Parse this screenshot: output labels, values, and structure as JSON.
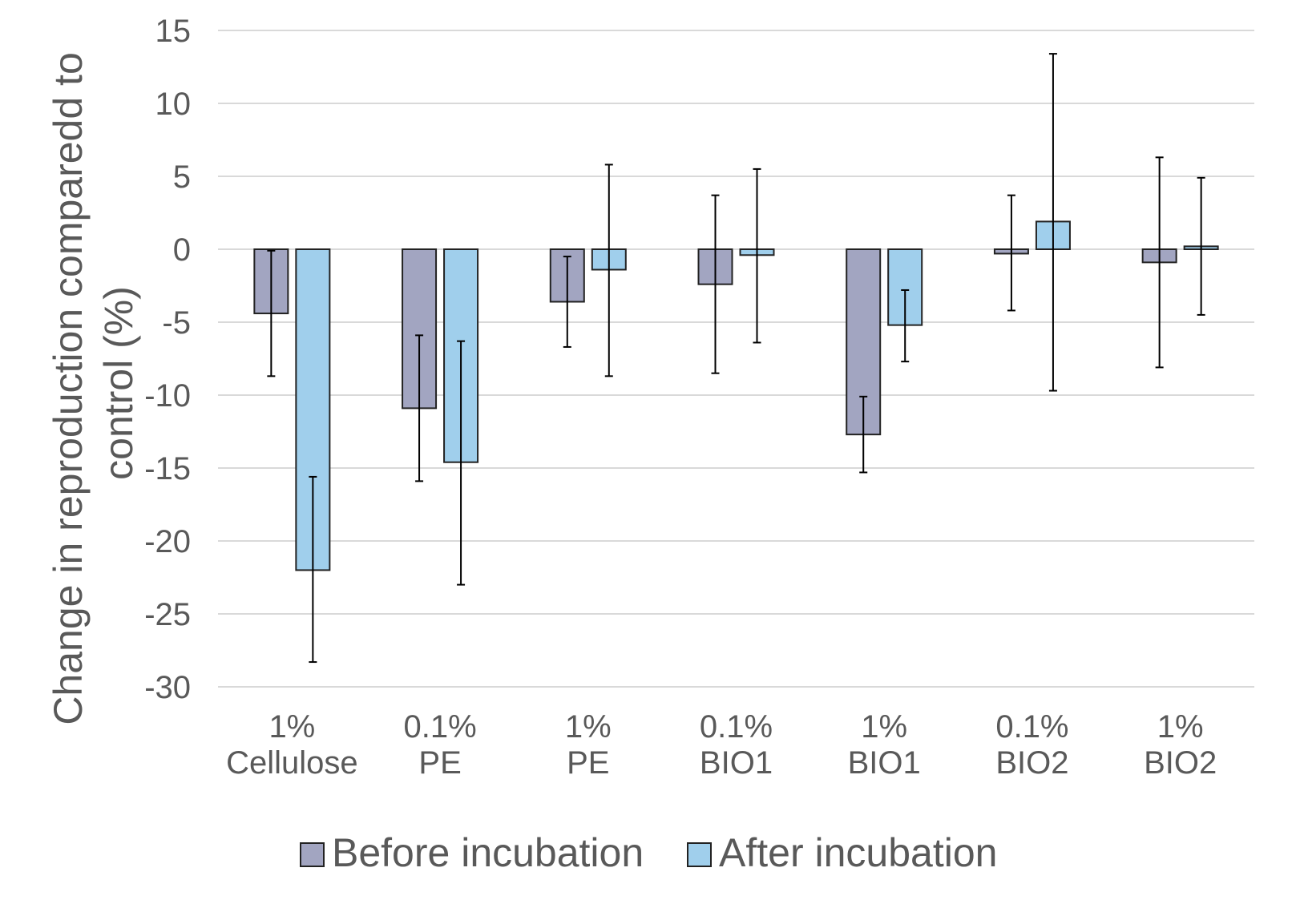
{
  "chart_data": {
    "type": "bar",
    "categories": [
      [
        "1%",
        "Cellulose"
      ],
      [
        "0.1%",
        "PE"
      ],
      [
        "1%",
        "PE"
      ],
      [
        "0.1%",
        "BIO1"
      ],
      [
        "1%",
        "BIO1"
      ],
      [
        "0.1%",
        "BIO2"
      ],
      [
        "1%",
        "BIO2"
      ]
    ],
    "series": [
      {
        "name": "Before incubation",
        "color": "#a2a5c1",
        "values": [
          -4.4,
          -10.9,
          -3.6,
          -2.4,
          -12.7,
          -0.3,
          -0.9
        ],
        "error_low": [
          -8.7,
          -15.9,
          -6.7,
          -8.5,
          -15.3,
          -4.2,
          -8.1
        ],
        "error_high": [
          -0.1,
          -5.9,
          -0.5,
          3.7,
          -10.1,
          3.7,
          6.3
        ]
      },
      {
        "name": "After incubation",
        "color": "#a0cfec",
        "values": [
          -22.0,
          -14.6,
          -1.4,
          -0.4,
          -5.2,
          1.9,
          0.2
        ],
        "error_low": [
          -28.3,
          -23.0,
          -8.7,
          -6.4,
          -7.7,
          -9.7,
          -4.5
        ],
        "error_high": [
          -15.6,
          -6.3,
          5.8,
          5.5,
          -2.8,
          13.4,
          4.9
        ]
      }
    ],
    "ylabel": [
      "Change in reproduction comparedd to",
      "control (%)"
    ],
    "ylim": [
      -30,
      15
    ],
    "yticks": [
      15,
      10,
      5,
      0,
      -5,
      -10,
      -15,
      -20,
      -25,
      -30
    ],
    "grid": true,
    "legend_position": "bottom"
  }
}
